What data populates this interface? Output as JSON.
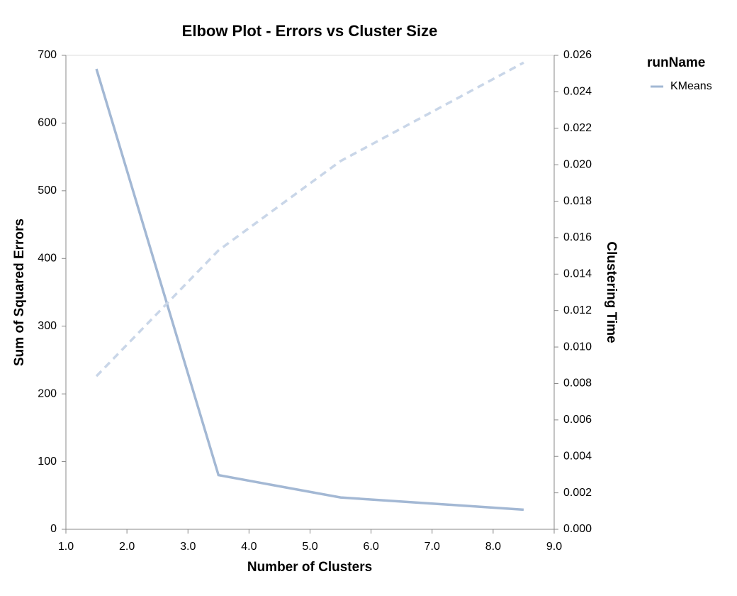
{
  "chart_data": {
    "type": "line",
    "title": "Elbow Plot - Errors vs Cluster Size",
    "x_label": "Number of Clusters",
    "y_label": "Sum of Squared Errors",
    "y2_label": "Clustering Time",
    "legend_title": "runName",
    "legend": "right",
    "x": [
      1.5,
      3.5,
      5.5,
      8.5
    ],
    "series": [
      {
        "name": "KMeans",
        "color": "#a3b8d4",
        "values": [
          680,
          80,
          47,
          29
        ]
      },
      {
        "color": "#c9d6e8",
        "axis": "y2",
        "dash": true,
        "values": [
          0.0084,
          0.0153,
          0.0202,
          0.0256
        ]
      }
    ],
    "xlim": [
      1,
      9
    ],
    "xticks": [
      {
        "value": 1,
        "label": "1.0"
      },
      {
        "value": 2,
        "label": "2.0"
      },
      {
        "value": 3,
        "label": "3.0"
      },
      {
        "value": 4,
        "label": "4.0"
      },
      {
        "value": 5,
        "label": "5.0"
      },
      {
        "value": 6,
        "label": "6.0"
      },
      {
        "value": 7,
        "label": "7.0"
      },
      {
        "value": 8,
        "label": "8.0"
      },
      {
        "value": 9,
        "label": "9.0"
      }
    ],
    "ylim": [
      0,
      700
    ],
    "yticks": [
      0,
      100,
      200,
      300,
      400,
      500,
      600,
      700
    ],
    "y2lim": [
      0,
      0.026
    ],
    "y2ticks": [
      {
        "value": 0,
        "label": "0.000"
      },
      {
        "value": 0.002,
        "label": "0.002"
      },
      {
        "value": 0.004,
        "label": "0.004"
      },
      {
        "value": 0.006,
        "label": "0.006"
      },
      {
        "value": 0.008,
        "label": "0.008"
      },
      {
        "value": 0.01,
        "label": "0.010"
      },
      {
        "value": 0.012,
        "label": "0.012"
      },
      {
        "value": 0.014,
        "label": "0.014"
      },
      {
        "value": 0.016,
        "label": "0.016"
      },
      {
        "value": 0.018,
        "label": "0.018"
      },
      {
        "value": 0.02,
        "label": "0.020"
      },
      {
        "value": 0.022,
        "label": "0.022"
      },
      {
        "value": 0.024,
        "label": "0.024"
      },
      {
        "value": 0.026,
        "label": "0.026"
      }
    ],
    "grid": false
  }
}
